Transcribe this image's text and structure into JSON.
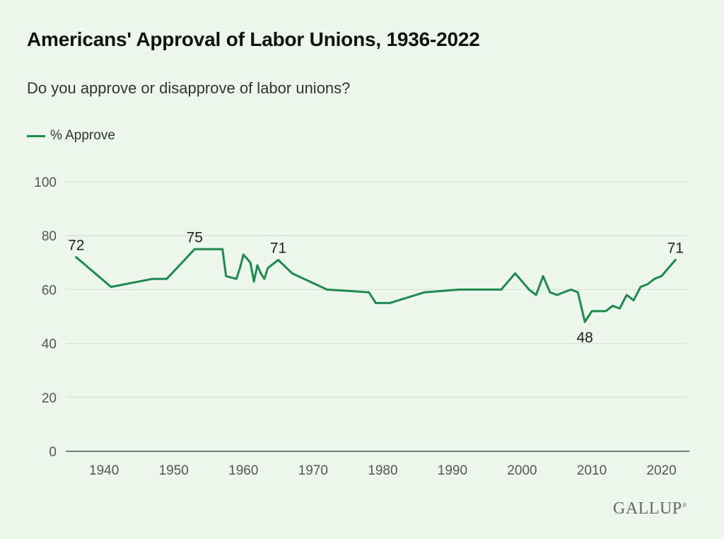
{
  "header": {
    "title": "Americans' Approval of Labor Unions, 1936-2022",
    "subtitle": "Do you approve or disapprove of labor unions?"
  },
  "legend": {
    "label": "% Approve",
    "color": "#1e8a4c"
  },
  "brand": {
    "logo_text": "GALLUP",
    "logo_mark": "®"
  },
  "chart_data": {
    "type": "line",
    "title": "Americans' Approval of Labor Unions, 1936-2022",
    "subtitle": "Do you approve or disapprove of labor unions?",
    "xlim": [
      1934.5,
      2024
    ],
    "ylim": [
      0,
      100
    ],
    "xticks": [
      1940,
      1950,
      1960,
      1970,
      1980,
      1990,
      2000,
      2010,
      2020
    ],
    "yticks": [
      0,
      20,
      40,
      60,
      80,
      100
    ],
    "grid": true,
    "legend_position": "top-left",
    "series": [
      {
        "name": "% Approve",
        "color": "#1e8a4c",
        "points": [
          [
            1936,
            72
          ],
          [
            1941,
            61
          ],
          [
            1947,
            64
          ],
          [
            1949,
            64
          ],
          [
            1953,
            75
          ],
          [
            1957,
            75
          ],
          [
            1957.5,
            65
          ],
          [
            1959,
            64
          ],
          [
            1959.5,
            68
          ],
          [
            1960,
            73
          ],
          [
            1961,
            70
          ],
          [
            1961.5,
            63
          ],
          [
            1962,
            69
          ],
          [
            1962.5,
            66
          ],
          [
            1963,
            64
          ],
          [
            1963.5,
            68
          ],
          [
            1965,
            71
          ],
          [
            1967,
            66
          ],
          [
            1972,
            60
          ],
          [
            1978,
            59
          ],
          [
            1979,
            55
          ],
          [
            1981,
            55
          ],
          [
            1986,
            59
          ],
          [
            1991,
            60
          ],
          [
            1997,
            60
          ],
          [
            1999,
            66
          ],
          [
            2001,
            60
          ],
          [
            2002,
            58
          ],
          [
            2003,
            65
          ],
          [
            2004,
            59
          ],
          [
            2005,
            58
          ],
          [
            2007,
            60
          ],
          [
            2008,
            59
          ],
          [
            2009,
            48
          ],
          [
            2010,
            52
          ],
          [
            2012,
            52
          ],
          [
            2013,
            54
          ],
          [
            2014,
            53
          ],
          [
            2015,
            58
          ],
          [
            2016,
            56
          ],
          [
            2017,
            61
          ],
          [
            2018,
            62
          ],
          [
            2019,
            64
          ],
          [
            2020,
            65
          ],
          [
            2021,
            68
          ],
          [
            2022,
            71
          ]
        ]
      }
    ],
    "annotations": [
      {
        "x": 1936,
        "y": 72,
        "text": "72",
        "position": "above"
      },
      {
        "x": 1953,
        "y": 75,
        "text": "75",
        "position": "above"
      },
      {
        "x": 1965,
        "y": 71,
        "text": "71",
        "position": "above"
      },
      {
        "x": 2009,
        "y": 48,
        "text": "48",
        "position": "below"
      },
      {
        "x": 2022,
        "y": 71,
        "text": "71",
        "position": "above"
      }
    ]
  }
}
